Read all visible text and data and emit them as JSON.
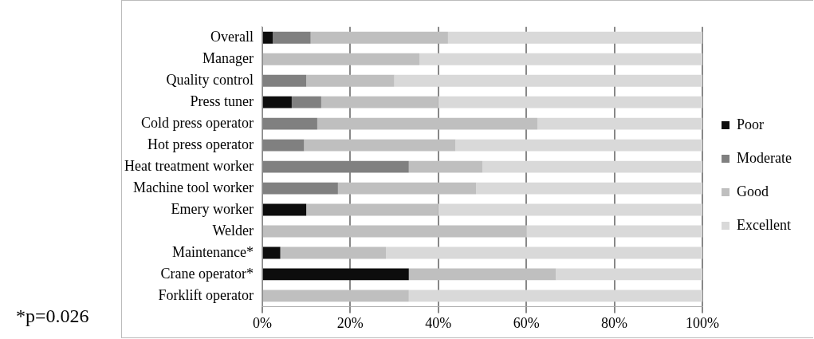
{
  "chart_data": {
    "type": "bar",
    "orientation": "horizontal",
    "stacked": true,
    "categories": [
      "Overall",
      "Manager",
      "Quality control",
      "Press tuner",
      "Cold press operator",
      "Hot press operator",
      "Heat treatment worker",
      "Machine tool worker",
      "Emery worker",
      "Welder",
      "Maintenance*",
      "Crane operator*",
      "Forklift operator"
    ],
    "series": [
      {
        "name": "Poor",
        "color": "#0d0d0d",
        "values": [
          2.4,
          0,
          0,
          6.7,
          0,
          0,
          0,
          0,
          10,
          0,
          4.1,
          33.3,
          0
        ]
      },
      {
        "name": "Moderate",
        "color": "#808080",
        "values": [
          8.6,
          0,
          10,
          6.7,
          12.5,
          9.5,
          33.3,
          17.2,
          0,
          0,
          0,
          0,
          0
        ]
      },
      {
        "name": "Good",
        "color": "#bfbfbf",
        "values": [
          31.2,
          35.7,
          20,
          26.6,
          50,
          34.4,
          16.7,
          31.4,
          30,
          60,
          24,
          33.4,
          33.3
        ]
      },
      {
        "name": "Excellent",
        "color": "#d9d9d9",
        "values": [
          57.8,
          64.3,
          70,
          60,
          37.5,
          56.1,
          50,
          51.4,
          60,
          40,
          71.9,
          33.3,
          66.7
        ]
      }
    ],
    "xlim": [
      0,
      100
    ],
    "xticks": [
      {
        "value": 0,
        "label": "0%"
      },
      {
        "value": 20,
        "label": "20%"
      },
      {
        "value": 40,
        "label": "40%"
      },
      {
        "value": 60,
        "label": "60%"
      },
      {
        "value": 80,
        "label": "80%"
      },
      {
        "value": 100,
        "label": "100%"
      }
    ],
    "grid": "x",
    "legend": "right",
    "annotations": [
      "*p=0.026"
    ]
  }
}
